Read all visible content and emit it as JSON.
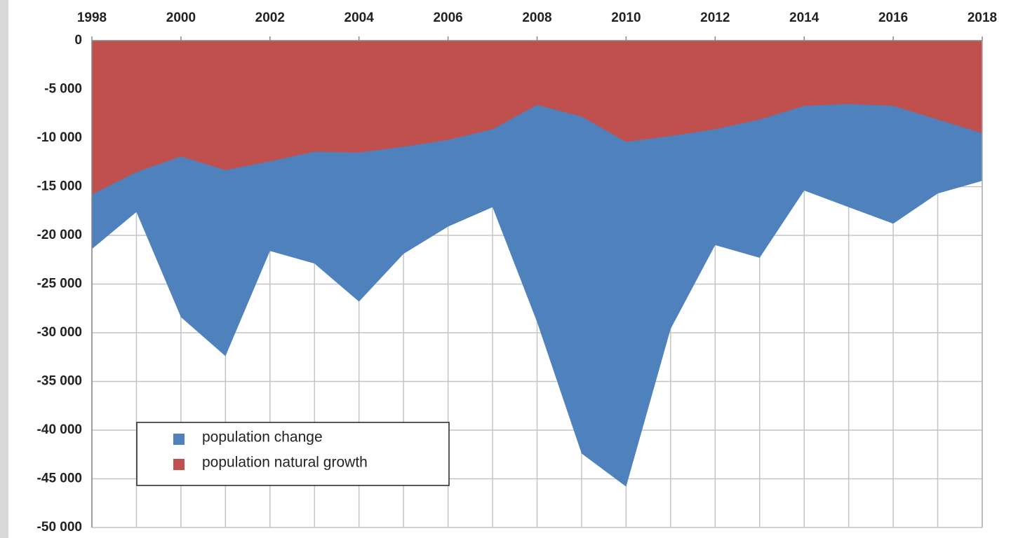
{
  "chart_data": {
    "type": "area",
    "x": [
      1998,
      1999,
      2000,
      2001,
      2002,
      2003,
      2004,
      2005,
      2006,
      2007,
      2008,
      2009,
      2010,
      2011,
      2012,
      2013,
      2014,
      2015,
      2016,
      2017,
      2018
    ],
    "series": [
      {
        "name": "population change",
        "color": "#4f81bd",
        "values": [
          -21400,
          -17600,
          -28400,
          -32400,
          -21600,
          -22900,
          -26800,
          -21900,
          -19100,
          -17100,
          -28900,
          -42400,
          -45800,
          -29600,
          -21000,
          -22300,
          -15400,
          -17100,
          -18800,
          -15700,
          -14400
        ]
      },
      {
        "name": "population natural growth",
        "color": "#c0504d",
        "values": [
          -15800,
          -13500,
          -11900,
          -13300,
          -12400,
          -11400,
          -11500,
          -10900,
          -10200,
          -9100,
          -6600,
          -7800,
          -10400,
          -9800,
          -9100,
          -8100,
          -6700,
          -6500,
          -6700,
          -8100,
          -9500
        ]
      }
    ],
    "xlim": [
      1998,
      2018
    ],
    "xticks": [
      1998,
      2000,
      2002,
      2004,
      2006,
      2008,
      2010,
      2012,
      2014,
      2016,
      2018
    ],
    "ylim": [
      -50000,
      0
    ],
    "yticks": [
      0,
      {
        "value": -5000,
        "label": "-5 000"
      },
      {
        "value": -10000,
        "label": "-10 000"
      },
      {
        "value": -15000,
        "label": "-15 000"
      },
      {
        "value": -20000,
        "label": "-20 000"
      },
      {
        "value": -25000,
        "label": "-25 000"
      },
      {
        "value": -30000,
        "label": "-30 000"
      },
      {
        "value": -35000,
        "label": "-35 000"
      },
      {
        "value": -40000,
        "label": "-40 000"
      },
      {
        "value": -45000,
        "label": "-45 000"
      },
      {
        "value": -50000,
        "label": "-50 000"
      }
    ],
    "grid": true
  }
}
